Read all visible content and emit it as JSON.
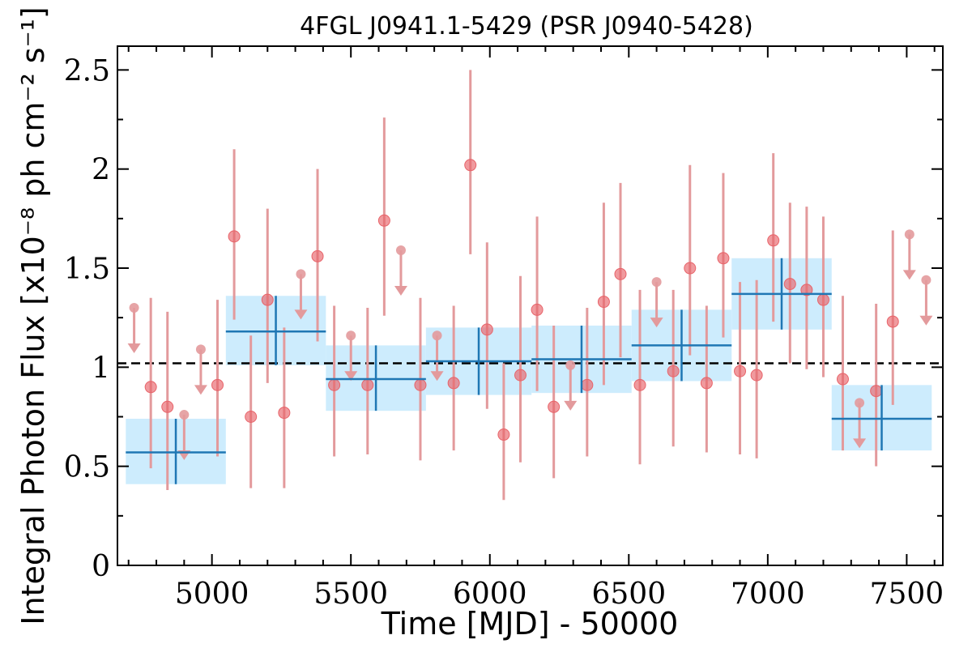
{
  "chart_data": {
    "type": "scatter",
    "title": "4FGL J0941.1-5429 (PSR J0940-5428)",
    "xlabel": "Time [MJD] - 50000",
    "ylabel": "Integral Photon Flux [x10⁻⁸ ph cm⁻² s⁻¹]",
    "xlim": [
      4660,
      7630
    ],
    "ylim": [
      0,
      2.62
    ],
    "xticks": [
      5000,
      5500,
      6000,
      6500,
      7000,
      7500
    ],
    "xtick_labels": [
      "5000",
      "5500",
      "6000",
      "6500",
      "7000",
      "7500"
    ],
    "yticks": [
      0,
      0.5,
      1,
      1.5,
      2,
      2.5
    ],
    "ytick_labels": [
      "0",
      "0.5",
      "1",
      "1.5",
      "2",
      "2.5"
    ],
    "grid": false,
    "reference_line": {
      "y": 1.02,
      "style": "dashed",
      "color": "#000000"
    },
    "colors": {
      "points": "#e8646a",
      "points_errorbar": "#e39a9c",
      "bins": "#1f77b4",
      "bins_band": "#cdecfd"
    },
    "series": [
      {
        "kind": "binned",
        "bins": [
          {
            "x": 4870,
            "xlo": 4690,
            "xhi": 5050,
            "y": 0.57,
            "ylo": 0.41,
            "yhi": 0.74
          },
          {
            "x": 5230,
            "xlo": 5050,
            "xhi": 5410,
            "y": 1.18,
            "ylo": 1.01,
            "yhi": 1.36
          },
          {
            "x": 5590,
            "xlo": 5410,
            "xhi": 5770,
            "y": 0.94,
            "ylo": 0.78,
            "yhi": 1.11
          },
          {
            "x": 5960,
            "xlo": 5770,
            "xhi": 6150,
            "y": 1.03,
            "ylo": 0.86,
            "yhi": 1.2
          },
          {
            "x": 6330,
            "xlo": 6150,
            "xhi": 6510,
            "y": 1.04,
            "ylo": 0.87,
            "yhi": 1.21
          },
          {
            "x": 6690,
            "xlo": 6510,
            "xhi": 6870,
            "y": 1.11,
            "ylo": 0.93,
            "yhi": 1.29
          },
          {
            "x": 7050,
            "xlo": 6870,
            "xhi": 7230,
            "y": 1.37,
            "ylo": 1.19,
            "yhi": 1.55
          },
          {
            "x": 7410,
            "xlo": 7230,
            "xhi": 7590,
            "y": 0.74,
            "ylo": 0.58,
            "yhi": 0.91
          }
        ]
      },
      {
        "kind": "points",
        "points": [
          {
            "x": 4720,
            "y": 1.3,
            "ul": true
          },
          {
            "x": 4780,
            "y": 0.9,
            "ylo": 0.49,
            "yhi": 1.35
          },
          {
            "x": 4840,
            "y": 0.8,
            "ylo": 0.38,
            "yhi": 1.28
          },
          {
            "x": 4900,
            "y": 0.76,
            "ul": true
          },
          {
            "x": 4960,
            "y": 1.09,
            "ul": true
          },
          {
            "x": 5020,
            "y": 0.91,
            "ylo": 0.55,
            "yhi": 1.34
          },
          {
            "x": 5080,
            "y": 1.66,
            "ylo": 1.24,
            "yhi": 2.1
          },
          {
            "x": 5140,
            "y": 0.75,
            "ylo": 0.39,
            "yhi": 1.16
          },
          {
            "x": 5200,
            "y": 1.34,
            "ylo": 0.92,
            "yhi": 1.8
          },
          {
            "x": 5260,
            "y": 0.77,
            "ylo": 0.39,
            "yhi": 1.2
          },
          {
            "x": 5320,
            "y": 1.47,
            "ul": true
          },
          {
            "x": 5380,
            "y": 1.56,
            "ylo": 1.13,
            "yhi": 2.0
          },
          {
            "x": 5440,
            "y": 0.91,
            "ylo": 0.55,
            "yhi": 1.31
          },
          {
            "x": 5500,
            "y": 1.16,
            "ul": true
          },
          {
            "x": 5560,
            "y": 0.91,
            "ylo": 0.56,
            "yhi": 1.3
          },
          {
            "x": 5620,
            "y": 1.74,
            "ylo": 1.26,
            "yhi": 2.26
          },
          {
            "x": 5680,
            "y": 1.59,
            "ul": true
          },
          {
            "x": 5750,
            "y": 0.91,
            "ylo": 0.53,
            "yhi": 1.35
          },
          {
            "x": 5810,
            "y": 1.16,
            "ul": true
          },
          {
            "x": 5870,
            "y": 0.92,
            "ylo": 0.58,
            "yhi": 1.31
          },
          {
            "x": 5930,
            "y": 2.02,
            "ylo": 1.57,
            "yhi": 2.5
          },
          {
            "x": 5990,
            "y": 1.19,
            "ylo": 0.79,
            "yhi": 1.63
          },
          {
            "x": 6050,
            "y": 0.66,
            "ylo": 0.33,
            "yhi": 1.02
          },
          {
            "x": 6110,
            "y": 0.96,
            "ylo": 0.52,
            "yhi": 1.46
          },
          {
            "x": 6170,
            "y": 1.29,
            "ylo": 0.88,
            "yhi": 1.76
          },
          {
            "x": 6230,
            "y": 0.8,
            "ylo": 0.44,
            "yhi": 1.21
          },
          {
            "x": 6290,
            "y": 1.01,
            "ul": true
          },
          {
            "x": 6350,
            "y": 0.91,
            "ylo": 0.55,
            "yhi": 1.3
          },
          {
            "x": 6410,
            "y": 1.33,
            "ylo": 0.91,
            "yhi": 1.83
          },
          {
            "x": 6470,
            "y": 1.47,
            "ylo": 1.05,
            "yhi": 1.93
          },
          {
            "x": 6540,
            "y": 0.91,
            "ylo": 0.51,
            "yhi": 1.39
          },
          {
            "x": 6600,
            "y": 1.43,
            "ul": true
          },
          {
            "x": 6660,
            "y": 0.98,
            "ylo": 0.6,
            "yhi": 1.39
          },
          {
            "x": 6720,
            "y": 1.5,
            "ylo": 1.06,
            "yhi": 2.02
          },
          {
            "x": 6780,
            "y": 0.92,
            "ylo": 0.57,
            "yhi": 1.31
          },
          {
            "x": 6840,
            "y": 1.55,
            "ylo": 1.15,
            "yhi": 1.98
          },
          {
            "x": 6900,
            "y": 0.98,
            "ylo": 0.56,
            "yhi": 1.43
          },
          {
            "x": 6960,
            "y": 0.96,
            "ylo": 0.54,
            "yhi": 1.44
          },
          {
            "x": 7020,
            "y": 1.64,
            "ylo": 1.23,
            "yhi": 2.08
          },
          {
            "x": 7080,
            "y": 1.42,
            "ylo": 1.02,
            "yhi": 1.83
          },
          {
            "x": 7140,
            "y": 1.39,
            "ylo": 0.99,
            "yhi": 1.81
          },
          {
            "x": 7200,
            "y": 1.34,
            "ylo": 0.95,
            "yhi": 1.76
          },
          {
            "x": 7270,
            "y": 0.94,
            "ylo": 0.58,
            "yhi": 1.36
          },
          {
            "x": 7330,
            "y": 0.82,
            "ul": true
          },
          {
            "x": 7390,
            "y": 0.88,
            "ylo": 0.5,
            "yhi": 1.32
          },
          {
            "x": 7450,
            "y": 1.23,
            "ylo": 0.81,
            "yhi": 1.69
          },
          {
            "x": 7510,
            "y": 1.67,
            "ul": true
          },
          {
            "x": 7570,
            "y": 1.44,
            "ul": true
          }
        ]
      }
    ]
  }
}
